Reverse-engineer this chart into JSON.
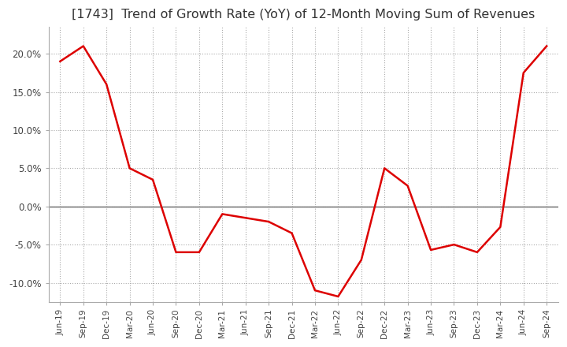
{
  "title": "[1743]  Trend of Growth Rate (YoY) of 12-Month Moving Sum of Revenues",
  "title_fontsize": 11.5,
  "line_color": "#dd0000",
  "background_color": "#ffffff",
  "grid_color": "#aaaaaa",
  "ylim": [
    -0.125,
    0.235
  ],
  "yticks": [
    -0.1,
    -0.05,
    0.0,
    0.05,
    0.1,
    0.15,
    0.2
  ],
  "dates": [
    "Jun-19",
    "Sep-19",
    "Dec-19",
    "Mar-20",
    "Jun-20",
    "Sep-20",
    "Dec-20",
    "Mar-21",
    "Jun-21",
    "Sep-21",
    "Dec-21",
    "Mar-22",
    "Jun-22",
    "Sep-22",
    "Dec-22",
    "Mar-23",
    "Jun-23",
    "Sep-23",
    "Dec-23",
    "Mar-24",
    "Jun-24",
    "Sep-24"
  ],
  "values": [
    0.19,
    0.21,
    0.16,
    0.05,
    0.035,
    -0.06,
    -0.06,
    -0.01,
    -0.015,
    -0.02,
    -0.035,
    -0.11,
    -0.118,
    -0.07,
    0.05,
    0.027,
    -0.057,
    -0.05,
    -0.06,
    -0.027,
    0.175,
    0.21
  ]
}
